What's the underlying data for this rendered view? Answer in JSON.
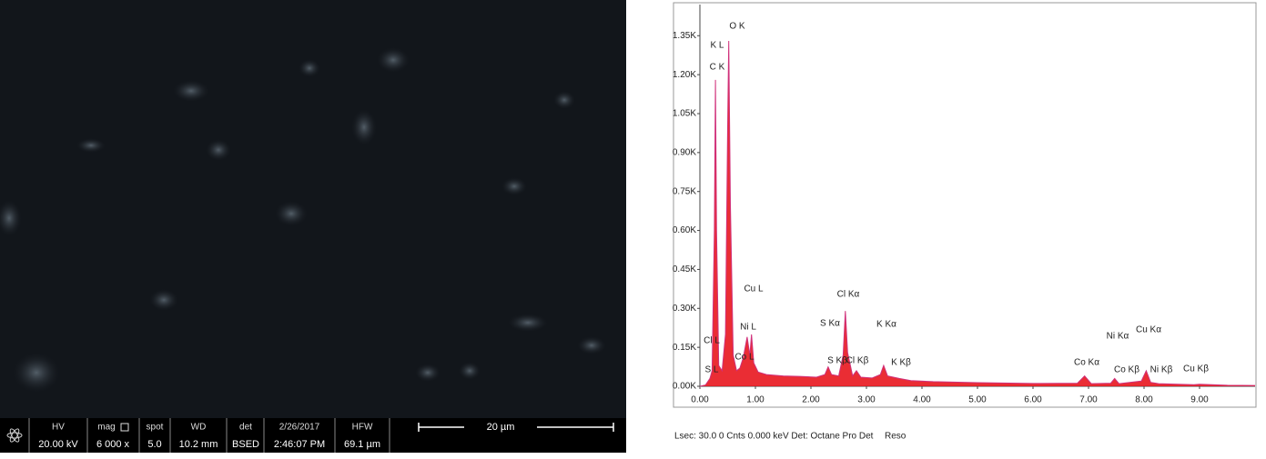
{
  "sem_panel": {
    "headers": [
      "HV",
      "mag",
      "spot",
      "WD",
      "det",
      "2/26/2017",
      "HFW"
    ],
    "values": [
      "20.00 kV",
      "6 000 x",
      "5.0",
      "10.2 mm",
      "BSED",
      "2:46:07 PM",
      "69.1 µm"
    ],
    "scale_bar": "20 µm"
  },
  "chart_data": {
    "type": "area",
    "footer": "Lsec: 30.0 0 Cnts 0.000 keV Det: Octane Pro Det",
    "footer_right": "Reso",
    "x": [
      0.0,
      0.1,
      0.18,
      0.22,
      0.26,
      0.28,
      0.3,
      0.34,
      0.4,
      0.46,
      0.5,
      0.52,
      0.55,
      0.6,
      0.66,
      0.72,
      0.78,
      0.85,
      0.9,
      0.93,
      0.97,
      1.05,
      1.2,
      1.5,
      1.8,
      2.1,
      2.25,
      2.31,
      2.37,
      2.5,
      2.58,
      2.62,
      2.66,
      2.75,
      2.82,
      2.9,
      3.1,
      3.25,
      3.31,
      3.38,
      3.59,
      3.8,
      4.2,
      5.0,
      6.0,
      6.8,
      6.93,
      7.05,
      7.4,
      7.47,
      7.55,
      7.95,
      8.04,
      8.12,
      8.26,
      8.9,
      9.0,
      9.5,
      10.0
    ],
    "series": [
      {
        "color": "#e8161e",
        "values": [
          0,
          5,
          30,
          60,
          600,
          1180,
          600,
          80,
          60,
          200,
          1000,
          1330,
          700,
          120,
          60,
          70,
          110,
          190,
          120,
          200,
          90,
          55,
          45,
          40,
          38,
          35,
          45,
          75,
          45,
          40,
          120,
          290,
          130,
          40,
          60,
          35,
          32,
          45,
          80,
          40,
          30,
          22,
          18,
          14,
          11,
          12,
          40,
          10,
          12,
          30,
          10,
          20,
          60,
          15,
          10,
          6,
          8,
          4,
          3
        ]
      }
    ],
    "xlim": [
      0,
      10
    ],
    "ylim": [
      0,
      1470
    ],
    "xticks": [
      {
        "value": 0,
        "label": "0.00"
      },
      {
        "value": 1,
        "label": "1.00"
      },
      {
        "value": 2,
        "label": "2.00"
      },
      {
        "value": 3,
        "label": "3.00"
      },
      {
        "value": 4,
        "label": "4.00"
      },
      {
        "value": 5,
        "label": "5.00"
      },
      {
        "value": 6,
        "label": "6.00"
      },
      {
        "value": 7,
        "label": "7.00"
      },
      {
        "value": 8,
        "label": "8.00"
      },
      {
        "value": 9,
        "label": "9.00"
      }
    ],
    "yticks": [
      {
        "value": 0,
        "label": "0.00K"
      },
      {
        "value": 150,
        "label": "0.15K"
      },
      {
        "value": 300,
        "label": "0.30K"
      },
      {
        "value": 450,
        "label": "0.45K"
      },
      {
        "value": 600,
        "label": "0.60K"
      },
      {
        "value": 750,
        "label": "0.75K"
      },
      {
        "value": 900,
        "label": "0.90K"
      },
      {
        "value": 1050,
        "label": "1.05K"
      },
      {
        "value": 1200,
        "label": "1.20K"
      },
      {
        "value": 1350,
        "label": "1.35K"
      }
    ],
    "annotations": [
      "O K",
      "K L",
      "C K",
      "Cu L",
      "Ni L",
      "Co L",
      "Cl L",
      "S L",
      "S Kα",
      "S Kβ",
      "Cl Kα",
      "Cl Kβ",
      "K Kα",
      "K Kβ",
      "Co Kα",
      "Ni Kα",
      "Cu Kα",
      "Co Kβ",
      "Ni Kβ",
      "Cu Kβ"
    ]
  }
}
